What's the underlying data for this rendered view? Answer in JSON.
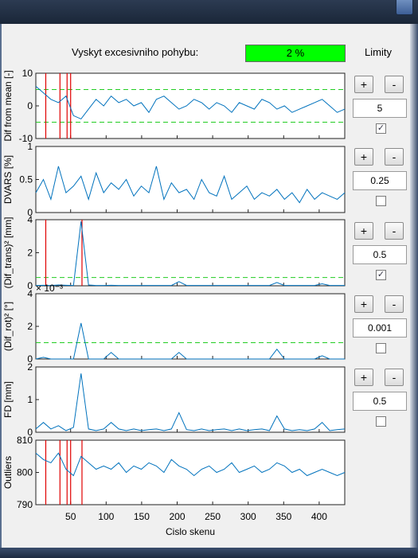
{
  "header": {
    "label": "Vyskyt excesivniho pohybu:",
    "status_value": "2 %",
    "status_color": "#00ff00",
    "limits_title": "Limity"
  },
  "controls": [
    {
      "plus": "+",
      "minus": "-",
      "value": "5",
      "checked": true
    },
    {
      "plus": "+",
      "minus": "-",
      "value": "0.25",
      "checked": false
    },
    {
      "plus": "+",
      "minus": "-",
      "value": "0.5",
      "checked": true
    },
    {
      "plus": "+",
      "minus": "-",
      "value": "0.001",
      "checked": false
    },
    {
      "plus": "+",
      "minus": "-",
      "value": "0.5",
      "checked": false
    }
  ],
  "x_axis": {
    "label": "Cislo skenu",
    "ticks": [
      "50",
      "100",
      "150",
      "200",
      "250",
      "300",
      "350",
      "400"
    ],
    "range": [
      1,
      436
    ]
  },
  "chart_data": [
    {
      "type": "line",
      "ylabel": "Dif from mean [-]",
      "ylim": [
        -10,
        10
      ],
      "yticks": [
        "10",
        "0",
        "-10"
      ],
      "thresholds": [
        5,
        -5
      ],
      "marker_scans": [
        15,
        35,
        45,
        50
      ],
      "series": [
        {
          "values": [
            6,
            4,
            2,
            1,
            3,
            -3,
            -4,
            -1,
            2,
            0,
            3,
            1,
            2,
            0,
            1,
            -2,
            2,
            3,
            1,
            -1,
            0,
            2,
            1,
            -1,
            1,
            0,
            -2,
            1,
            0,
            -1,
            2,
            1,
            -1,
            0,
            -2,
            -1,
            0,
            1,
            2,
            0,
            -2,
            -1
          ]
        }
      ]
    },
    {
      "type": "line",
      "ylabel": "DVARS [%]",
      "ylim": [
        0,
        1
      ],
      "yticks": [
        "1",
        "0.5",
        "0"
      ],
      "series": [
        {
          "values": [
            0.3,
            0.5,
            0.2,
            0.7,
            0.3,
            0.4,
            0.55,
            0.2,
            0.6,
            0.3,
            0.45,
            0.35,
            0.5,
            0.25,
            0.4,
            0.3,
            0.7,
            0.2,
            0.45,
            0.3,
            0.35,
            0.2,
            0.5,
            0.3,
            0.25,
            0.55,
            0.2,
            0.3,
            0.4,
            0.2,
            0.3,
            0.25,
            0.35,
            0.2,
            0.3,
            0.15,
            0.35,
            0.2,
            0.3,
            0.25,
            0.2,
            0.3
          ]
        }
      ]
    },
    {
      "type": "line",
      "ylabel": "(Dif_trans)² [mm]",
      "ylim": [
        0,
        4
      ],
      "yticks": [
        "4",
        "2",
        "0"
      ],
      "threshold": 0.5,
      "marker_scans": [
        15,
        66
      ],
      "series": [
        {
          "values": [
            0.02,
            0.03,
            0.02,
            0.05,
            0.03,
            0.02,
            3.9,
            0.05,
            0.02,
            0.02,
            0.03,
            0.02,
            0.02,
            0.02,
            0.02,
            0.02,
            0.02,
            0.02,
            0.02,
            0.25,
            0.02,
            0.02,
            0.02,
            0.02,
            0.02,
            0.02,
            0.02,
            0.02,
            0.02,
            0.02,
            0.02,
            0.02,
            0.2,
            0.02,
            0.02,
            0.02,
            0.02,
            0.02,
            0.12,
            0.02,
            0.02,
            0.02
          ]
        }
      ]
    },
    {
      "type": "line",
      "ylabel": "(Dif_rot)² [°]",
      "ylim": [
        0,
        0.004
      ],
      "yticks": [
        "4",
        "2",
        "0"
      ],
      "scale_label": "× 10⁻³",
      "threshold": 0.001,
      "series": [
        {
          "values": [
            0.0,
            0.0001,
            0.0,
            0.0,
            0.0,
            0.0,
            0.0022,
            0.0,
            0.0,
            0.0,
            0.0004,
            0.0,
            0.0,
            0.0,
            0.0,
            0.0,
            0.0,
            0.0,
            0.0,
            0.0004,
            0.0,
            0.0,
            0.0,
            0.0,
            0.0,
            0.0,
            0.0,
            0.0,
            0.0,
            0.0,
            0.0,
            0.0,
            0.0006,
            0.0,
            0.0,
            0.0,
            0.0,
            0.0,
            0.0002,
            0.0,
            0.0,
            0.0
          ]
        }
      ]
    },
    {
      "type": "line",
      "ylabel": "FD [mm]",
      "ylim": [
        0,
        2
      ],
      "yticks": [
        "2",
        "1",
        "0"
      ],
      "series": [
        {
          "values": [
            0.1,
            0.3,
            0.1,
            0.2,
            0.05,
            0.15,
            1.8,
            0.1,
            0.05,
            0.1,
            0.3,
            0.1,
            0.05,
            0.1,
            0.05,
            0.08,
            0.1,
            0.05,
            0.1,
            0.6,
            0.08,
            0.05,
            0.1,
            0.05,
            0.08,
            0.1,
            0.05,
            0.1,
            0.05,
            0.08,
            0.1,
            0.05,
            0.5,
            0.1,
            0.05,
            0.08,
            0.05,
            0.1,
            0.3,
            0.05,
            0.08,
            0.1
          ]
        }
      ]
    },
    {
      "type": "line",
      "ylabel": "Outliers",
      "ylim": [
        790,
        810
      ],
      "yticks": [
        "810",
        "800",
        "790"
      ],
      "marker_scans": [
        15,
        35,
        45,
        50,
        66
      ],
      "series": [
        {
          "values": [
            806,
            804,
            803,
            806,
            801,
            799,
            805,
            803,
            801,
            802,
            801,
            803,
            800,
            802,
            801,
            803,
            802,
            800,
            804,
            802,
            801,
            799,
            801,
            802,
            800,
            801,
            803,
            800,
            801,
            802,
            800,
            801,
            803,
            802,
            800,
            801,
            799,
            800,
            801,
            800,
            799,
            800
          ]
        }
      ]
    }
  ],
  "colors": {
    "series": "#0072bd",
    "marker": "#e00000",
    "threshold": "#22cc22",
    "secondary": "#e08020"
  }
}
